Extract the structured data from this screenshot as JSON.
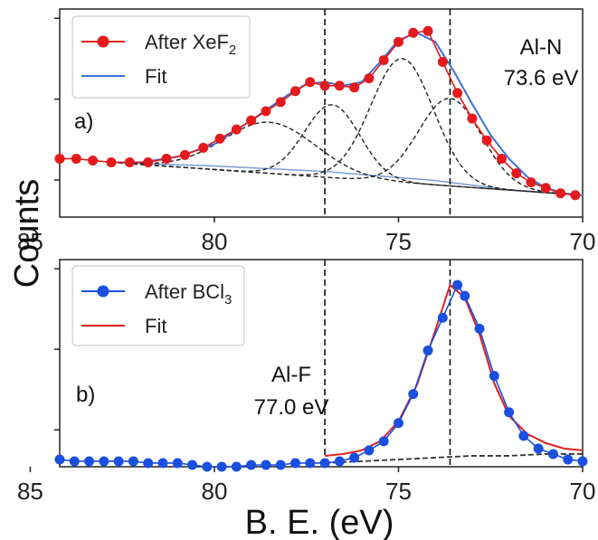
{
  "chart_data": [
    {
      "panel": "a)",
      "type": "line",
      "xlim": [
        84.2,
        70.0
      ],
      "x_reversed": true,
      "xticks": [
        85,
        80,
        75,
        70
      ],
      "ylim": [
        0.0,
        1.14
      ],
      "legend": {
        "placement": "top-left",
        "entries": [
          {
            "label": "After XeF",
            "subscript": "2",
            "color": "#e41a1c",
            "marker": "circle"
          },
          {
            "label": "Fit",
            "subscript": "",
            "color": "#3a6fd8",
            "marker": "none"
          }
        ]
      },
      "annotation": {
        "line1": "Al-N",
        "line2": "73.6 eV"
      },
      "vlines": [
        77.0,
        73.6
      ],
      "data": {
        "name": "After XeF2",
        "color": "#e41a1c",
        "x": [
          84.2,
          83.75,
          83.3,
          82.8,
          82.3,
          81.8,
          81.3,
          80.8,
          80.3,
          79.85,
          79.4,
          79.0,
          78.6,
          78.2,
          77.8,
          77.4,
          77.0,
          76.6,
          76.2,
          75.8,
          75.4,
          75.0,
          74.6,
          74.2,
          73.8,
          73.4,
          73.0,
          72.6,
          72.2,
          71.8,
          71.4,
          71.0,
          70.6,
          70.2
        ],
        "y": [
          0.32,
          0.32,
          0.31,
          0.3,
          0.3,
          0.3,
          0.32,
          0.34,
          0.38,
          0.43,
          0.48,
          0.53,
          0.58,
          0.63,
          0.69,
          0.74,
          0.72,
          0.72,
          0.71,
          0.76,
          0.86,
          0.96,
          1.01,
          1.02,
          0.85,
          0.68,
          0.54,
          0.42,
          0.32,
          0.24,
          0.19,
          0.16,
          0.13,
          0.12
        ]
      },
      "fit": {
        "name": "Fit",
        "color": "#3a6fd8",
        "x": [
          82.8,
          82.0,
          81.0,
          80.0,
          79.0,
          78.0,
          77.5,
          77.0,
          76.5,
          76.0,
          75.5,
          75.0,
          74.5,
          74.0,
          73.5,
          73.0,
          72.5,
          72.0,
          71.5,
          71.0,
          70.5,
          70.0
        ],
        "y": [
          0.3,
          0.3,
          0.33,
          0.4,
          0.53,
          0.67,
          0.73,
          0.74,
          0.72,
          0.74,
          0.85,
          0.97,
          1.01,
          0.96,
          0.8,
          0.62,
          0.45,
          0.32,
          0.22,
          0.16,
          0.13,
          0.12
        ]
      },
      "background": {
        "color": "#7a9bd8",
        "x": [
          82.8,
          80.0,
          77.0,
          74.0,
          72.0,
          70.0
        ],
        "y": [
          0.3,
          0.28,
          0.25,
          0.2,
          0.15,
          0.12
        ]
      },
      "components": [
        {
          "center": 78.5,
          "amplitude": 0.28,
          "width": 1.25
        },
        {
          "center": 76.8,
          "amplitude": 0.4,
          "width": 0.75
        },
        {
          "center": 74.9,
          "amplitude": 0.68,
          "width": 0.85
        },
        {
          "center": 73.6,
          "amplitude": 0.48,
          "width": 0.85
        }
      ]
    },
    {
      "panel": "b)",
      "type": "line",
      "xlim": [
        84.2,
        70.0
      ],
      "x_reversed": true,
      "xticks": [
        85,
        80,
        75,
        70
      ],
      "ylim": [
        0.0,
        1.14
      ],
      "legend": {
        "placement": "top-left",
        "entries": [
          {
            "label": "After BCl",
            "subscript": "3",
            "color": "#1a4fe0",
            "marker": "circle"
          },
          {
            "label": "Fit",
            "subscript": "",
            "color": "#e02020",
            "marker": "none"
          }
        ]
      },
      "annotation": {
        "line1": "Al-F",
        "line2": "77.0 eV"
      },
      "vlines": [
        77.0,
        73.6
      ],
      "data": {
        "name": "After BCl3",
        "color": "#1a4fe0",
        "x": [
          84.2,
          83.8,
          83.4,
          83.0,
          82.6,
          82.2,
          81.8,
          81.4,
          81.0,
          80.6,
          80.2,
          79.8,
          79.4,
          79.0,
          78.6,
          78.2,
          77.8,
          77.4,
          77.0,
          76.6,
          76.2,
          75.8,
          75.4,
          75.0,
          74.6,
          74.2,
          73.8,
          73.4,
          73.2,
          72.8,
          72.4,
          72.0,
          71.6,
          71.2,
          70.8,
          70.4,
          70.0
        ],
        "y": [
          0.04,
          0.03,
          0.03,
          0.03,
          0.03,
          0.03,
          0.02,
          0.02,
          0.02,
          0.01,
          0.0,
          0.0,
          0.0,
          0.01,
          0.01,
          0.01,
          0.02,
          0.02,
          0.02,
          0.03,
          0.05,
          0.09,
          0.14,
          0.24,
          0.4,
          0.64,
          0.82,
          1.0,
          0.94,
          0.76,
          0.5,
          0.3,
          0.17,
          0.1,
          0.07,
          0.04,
          0.03
        ]
      },
      "fit": {
        "name": "Fit",
        "color": "#e02020",
        "x": [
          77.0,
          76.5,
          76.0,
          75.5,
          75.0,
          74.5,
          74.0,
          73.6,
          73.2,
          72.8,
          72.4,
          72.0,
          71.5,
          71.0,
          70.5,
          70.0
        ],
        "y": [
          0.06,
          0.07,
          0.09,
          0.14,
          0.25,
          0.45,
          0.75,
          1.0,
          0.93,
          0.73,
          0.46,
          0.28,
          0.18,
          0.13,
          0.1,
          0.09
        ]
      },
      "background": {
        "color": "#333333",
        "x": [
          77.0,
          76.0,
          75.0,
          74.0,
          73.0,
          72.0,
          71.0,
          70.0
        ],
        "y": [
          0.02,
          0.03,
          0.04,
          0.05,
          0.06,
          0.06,
          0.07,
          0.07
        ]
      },
      "components": []
    }
  ],
  "labels": {
    "xlabel": "B. E. (eV)",
    "ylabel": "Counts"
  }
}
